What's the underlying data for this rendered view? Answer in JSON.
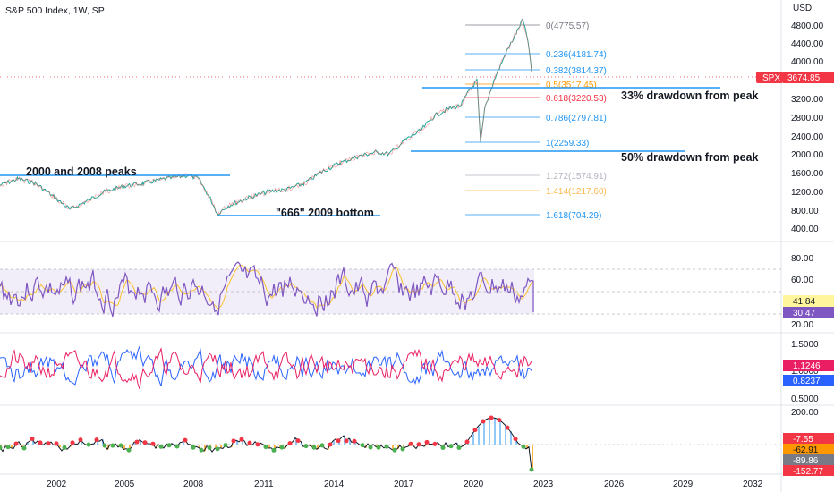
{
  "header": {
    "title": "S&P 500 Index, 1W, SP"
  },
  "price_axis": {
    "currency": "USD",
    "ticks": [
      "4800.00",
      "4400.00",
      "4000.00",
      "3200.00",
      "2800.00",
      "2400.00",
      "2000.00",
      "1600.00",
      "1200.00",
      "800.00",
      "400.00"
    ],
    "symbol": "SPX",
    "last_price": "3674.85"
  },
  "fib": [
    {
      "label": "0(4775.57)",
      "color": "#787b86"
    },
    {
      "label": "0.236(4181.74)",
      "color": "#2196f3"
    },
    {
      "label": "0.382(3814.37)",
      "color": "#2196f3"
    },
    {
      "label": "0.5(3517.45)",
      "color": "#ff9800"
    },
    {
      "label": "0.618(3220.53)",
      "color": "#f23645"
    },
    {
      "label": "0.786(2797.81)",
      "color": "#2196f3"
    },
    {
      "label": "1(2259.33)",
      "color": "#2196f3"
    },
    {
      "label": "1.272(1574.91)",
      "color": "#b2b5be"
    },
    {
      "label": "1.414(1217.60)",
      "color": "#ffb74d"
    },
    {
      "label": "1.618(704.29)",
      "color": "#2196f3"
    }
  ],
  "annotations": {
    "peaks": "2000 and 2008 peaks",
    "bottom": "\"666\" 2009 bottom",
    "dd33": "33% drawdown from peak",
    "dd50": "50% drawdown from peak"
  },
  "rsi_pane": {
    "ticks": [
      "80.00",
      "60.00",
      "20.00"
    ],
    "badge1": "41.84",
    "badge2": "30.47"
  },
  "ratio_pane": {
    "ticks": [
      "1.5000",
      "1.0000",
      "0.5000"
    ],
    "badge1": "1.1246",
    "badge2": "0.8237"
  },
  "momentum_pane": {
    "ticks": [
      "200.00"
    ],
    "badges": [
      "-7.55",
      "-62.91",
      "-89.86",
      "-152.77"
    ]
  },
  "time_axis": [
    "2002",
    "2005",
    "2008",
    "2011",
    "2014",
    "2017",
    "2020",
    "2023",
    "2026",
    "2029",
    "2032"
  ],
  "colors": {
    "rsi_line": "#7e57c2",
    "rsi_signal": "#fbc02d",
    "rsi_band": "#ede7f6",
    "ratio_red": "#e91e63",
    "ratio_blue": "#2962ff",
    "badge_red": "#f23645",
    "badge_orange": "#ff9800",
    "badge_gray": "#787b86",
    "annotation_line": "#2196f3"
  }
}
